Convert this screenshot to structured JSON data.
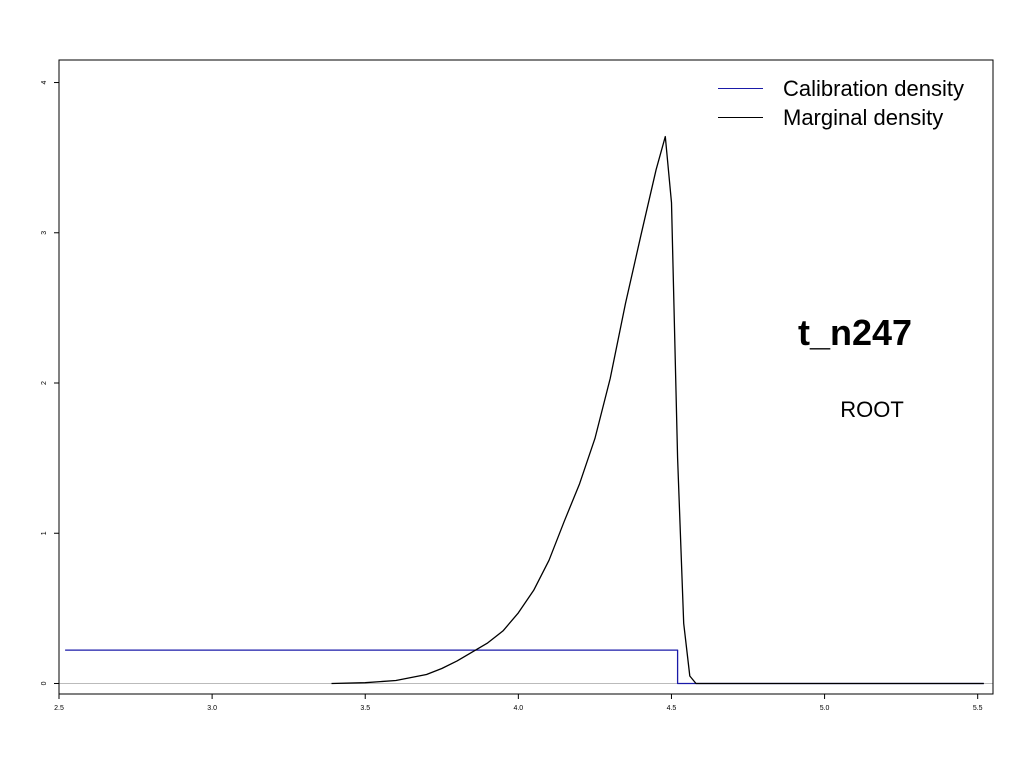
{
  "chart_data": {
    "type": "line",
    "title": "",
    "xlabel": "",
    "ylabel": "",
    "xlim": [
      2.5,
      5.55
    ],
    "ylim": [
      -0.07,
      4.15
    ],
    "x_ticks": [
      "2.5",
      "3.0",
      "3.5",
      "4.0",
      "4.5",
      "5.0",
      "5.5"
    ],
    "y_ticks": [
      "0",
      "1",
      "2",
      "3",
      "4"
    ],
    "annotations": {
      "node_name": "t_n247",
      "node_label": "ROOT"
    },
    "legend": {
      "placement": "top-right",
      "entries": [
        {
          "label": "Calibration density",
          "color": "#1a1aa8"
        },
        {
          "label": "Marginal density",
          "color": "#000000"
        }
      ]
    },
    "series": [
      {
        "name": "Calibration density",
        "color": "#1a1aa8",
        "x": [
          2.52,
          4.52,
          4.52,
          5.52
        ],
        "y": [
          0.222,
          0.222,
          0.0,
          0.0
        ]
      },
      {
        "name": "Marginal density",
        "color": "#000000",
        "x": [
          3.39,
          3.5,
          3.6,
          3.65,
          3.7,
          3.75,
          3.8,
          3.85,
          3.9,
          3.95,
          4.0,
          4.05,
          4.1,
          4.15,
          4.2,
          4.25,
          4.3,
          4.35,
          4.4,
          4.45,
          4.48,
          4.5,
          4.52,
          4.54,
          4.56,
          4.58,
          4.62,
          5.52
        ],
        "y": [
          0.0,
          0.005,
          0.02,
          0.04,
          0.06,
          0.1,
          0.15,
          0.21,
          0.27,
          0.35,
          0.47,
          0.62,
          0.82,
          1.08,
          1.33,
          1.63,
          2.03,
          2.53,
          2.98,
          3.42,
          3.64,
          3.2,
          1.5,
          0.4,
          0.05,
          0.0,
          0.0,
          0.0
        ]
      }
    ],
    "baseline": {
      "y": 0,
      "color": "#bbbbbb"
    }
  }
}
